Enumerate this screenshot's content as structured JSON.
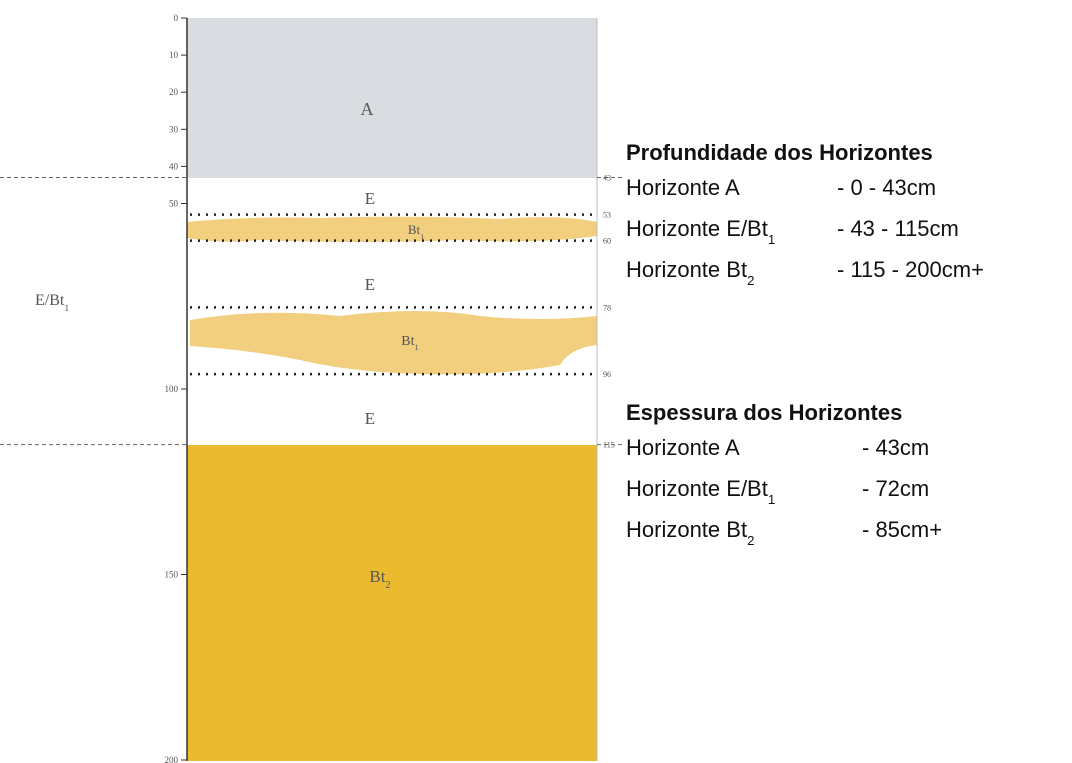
{
  "axis": {
    "ticks": [
      0,
      10,
      20,
      30,
      40,
      50,
      100,
      150,
      200
    ]
  },
  "markers": [
    43,
    53,
    60,
    78,
    96,
    115
  ],
  "left_label": {
    "text": "E/Bt",
    "sub": "1"
  },
  "horizon_labels": [
    {
      "text": "A"
    },
    {
      "text": "E"
    },
    {
      "text": "Bt",
      "sub": "1"
    },
    {
      "text": "E"
    },
    {
      "text": "Bt",
      "sub": "1"
    },
    {
      "text": "E"
    },
    {
      "text": "Bt",
      "sub": "2"
    }
  ],
  "depth_section": {
    "title": "Profundidade dos Horizontes",
    "rows": [
      {
        "name": {
          "text": "Horizonte A"
        },
        "value": "- 0 - 43cm"
      },
      {
        "name": {
          "text": "Horizonte E/Bt",
          "sub": "1"
        },
        "value": "- 43 - 115cm"
      },
      {
        "name": {
          "text": "Horizonte Bt",
          "sub": "2"
        },
        "value": "- 115 - 200cm+"
      }
    ]
  },
  "thickness_section": {
    "title": "Espessura dos Horizontes",
    "rows": [
      {
        "name": {
          "text": "Horizonte A"
        },
        "value": "- 43cm"
      },
      {
        "name": {
          "text": "Horizonte E/Bt",
          "sub": "1"
        },
        "value": "- 72cm"
      },
      {
        "name": {
          "text": "Horizonte Bt",
          "sub": "2"
        },
        "value": "- 85cm+"
      }
    ]
  }
}
